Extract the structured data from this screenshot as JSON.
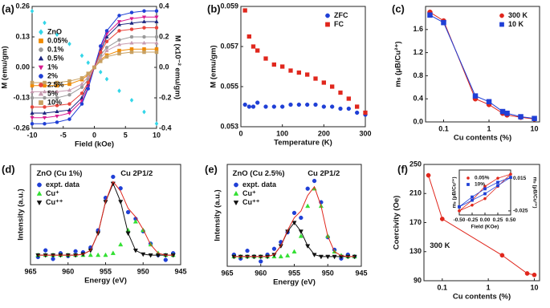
{
  "chart_data": [
    {
      "type": "line",
      "label": "(a)",
      "xlabel": "Field (kOe)",
      "ylabel": "M (emu/gm)",
      "y2label": "M (x10⁻² emu/gm)",
      "xlim": [
        -10,
        10
      ],
      "xticks": [
        -10,
        -5,
        0,
        5,
        10
      ],
      "ylim": [
        -0.26,
        0.26
      ],
      "yticks": [
        0.26,
        0.13,
        {
          "value": 0,
          "label": "0.00"
        },
        -0.13,
        -0.26
      ],
      "y2lim": [
        -0.4,
        0.4
      ],
      "y2ticks": [
        0.4,
        0.2,
        {
          "value": 0,
          "label": "0.0"
        },
        -0.2,
        -0.4
      ],
      "legend": "center left",
      "x": [
        -10,
        -8,
        -6,
        -4,
        -2,
        -1,
        0,
        1,
        2,
        4,
        6,
        8,
        10
      ],
      "series": [
        {
          "name": "ZnO",
          "color": "#33d6e8",
          "marker": "diamond",
          "line": false,
          "values": [
            0.24,
            0.19,
            0.14,
            0.1,
            0.05,
            0.02,
            0,
            -0.02,
            -0.05,
            -0.1,
            -0.14,
            -0.19,
            -0.24
          ]
        },
        {
          "name": "0.05%",
          "color": "#f08a00",
          "marker": "square",
          "line": true,
          "axis": "y2",
          "values": [
            -0.12,
            -0.12,
            -0.12,
            -0.11,
            -0.08,
            -0.05,
            0,
            0.05,
            0.08,
            0.11,
            0.12,
            0.12,
            0.12
          ]
        },
        {
          "name": "0.1%",
          "color": "#9a9a9a",
          "marker": "circle",
          "line": true,
          "axis": "y2",
          "values": [
            -0.2,
            -0.2,
            -0.2,
            -0.18,
            -0.13,
            -0.08,
            0,
            0.08,
            0.13,
            0.18,
            0.2,
            0.2,
            0.2
          ]
        },
        {
          "name": "0.5%",
          "color": "#1a237e",
          "marker": "triangle",
          "line": true,
          "axis": "y2",
          "values": [
            -0.3,
            -0.3,
            -0.29,
            -0.28,
            -0.2,
            -0.11,
            0,
            0.11,
            0.2,
            0.28,
            0.29,
            0.3,
            0.3
          ]
        },
        {
          "name": "1%",
          "color": "#d81b8f",
          "marker": "triangle-down",
          "line": true,
          "axis": "y2",
          "values": [
            -0.33,
            -0.33,
            -0.32,
            -0.3,
            -0.22,
            -0.13,
            0,
            0.13,
            0.22,
            0.3,
            0.32,
            0.33,
            0.33
          ]
        },
        {
          "name": "2%",
          "color": "#1f3fd6",
          "marker": "circle",
          "line": true,
          "axis": "y2",
          "values": [
            -0.37,
            -0.37,
            -0.36,
            -0.34,
            -0.24,
            -0.14,
            0,
            0.14,
            0.24,
            0.34,
            0.36,
            0.37,
            0.37
          ]
        },
        {
          "name": "2.5%",
          "color": "#e8453c",
          "marker": "circle",
          "line": true,
          "axis": "y2",
          "values": [
            -0.26,
            -0.26,
            -0.25,
            -0.24,
            -0.17,
            -0.1,
            0,
            0.1,
            0.17,
            0.24,
            0.25,
            0.26,
            0.26
          ]
        },
        {
          "name": "5%",
          "color": "#c79bb0",
          "marker": "triangle",
          "line": true,
          "axis": "y2",
          "values": [
            -0.16,
            -0.16,
            -0.16,
            -0.15,
            -0.11,
            -0.06,
            0,
            0.06,
            0.11,
            0.15,
            0.16,
            0.16,
            0.16
          ]
        },
        {
          "name": "10%",
          "color": "#c8a060",
          "marker": "square",
          "line": true,
          "axis": "y2",
          "values": [
            -0.1,
            -0.1,
            -0.1,
            -0.09,
            -0.07,
            -0.04,
            0,
            0.04,
            0.07,
            0.09,
            0.1,
            0.1,
            0.1
          ]
        }
      ]
    },
    {
      "type": "scatter",
      "label": "(b)",
      "xlabel": "Temperature (K)",
      "ylabel": "M (emu/gm)",
      "xlim": [
        0,
        300
      ],
      "xticks": [
        0,
        100,
        200,
        300
      ],
      "ylim": [
        0.053,
        0.059
      ],
      "yticks": [
        0.053,
        0.055,
        0.057,
        0.059
      ],
      "legend": "upper right",
      "x": [
        10,
        20,
        30,
        40,
        60,
        80,
        100,
        120,
        140,
        160,
        180,
        200,
        220,
        240,
        260,
        280,
        300
      ],
      "series": [
        {
          "name": "ZFC",
          "color": "#1f3fd6",
          "marker": "circle",
          "line": false,
          "values": [
            0.0541,
            0.054,
            0.054,
            0.0542,
            0.054,
            0.054,
            0.054,
            0.0541,
            0.0541,
            0.0541,
            0.0541,
            0.054,
            0.054,
            0.0539,
            0.0539,
            0.0537,
            0.0536
          ]
        },
        {
          "name": "FC",
          "color": "#e0261c",
          "marker": "square",
          "line": false,
          "values": [
            0.0588,
            0.0575,
            0.057,
            0.0568,
            0.0564,
            0.0561,
            0.056,
            0.0558,
            0.0557,
            0.0556,
            0.0554,
            0.0552,
            0.055,
            0.0547,
            0.0544,
            0.054,
            0.0537
          ]
        }
      ]
    },
    {
      "type": "line",
      "label": "(c)",
      "xlabel": "Cu contents (%)",
      "ylabel": "mₛ (μB/Cu²⁺)",
      "xscale": "log",
      "xlim": [
        0.04,
        13
      ],
      "xticks": [
        0.1,
        1,
        10
      ],
      "ylim": [
        0,
        2
      ],
      "yticks": [
        {
          "value": 0,
          "label": "0.0"
        },
        0.4,
        0.8,
        1.2,
        1.6
      ],
      "legend": "upper right",
      "x": [
        0.05,
        0.1,
        0.5,
        1,
        2,
        2.5,
        5,
        10
      ],
      "series": [
        {
          "name": "300 K",
          "color": "#e0261c",
          "marker": "circle",
          "line": true,
          "values": [
            1.9,
            1.75,
            0.4,
            0.3,
            0.15,
            0.12,
            0.08,
            0.05
          ]
        },
        {
          "name": "10 K",
          "color": "#1f3fd6",
          "marker": "square",
          "line": true,
          "values": [
            1.85,
            1.72,
            0.45,
            0.35,
            0.18,
            0.15,
            0.09,
            0.06
          ]
        }
      ]
    },
    {
      "type": "line",
      "label": "(d)",
      "xlabel": "Energy (eV)",
      "ylabel": "Intensity (a.u.)",
      "annotations": [
        "ZnO (Cu 1%)",
        "Cu 2P1/2"
      ],
      "xlim": [
        965,
        945
      ],
      "xticks": [
        965,
        960,
        955,
        950,
        945
      ],
      "ylim": [
        0,
        1.05
      ],
      "legend": "upper left",
      "x": [
        964,
        963,
        962,
        961,
        960,
        959,
        958,
        957,
        956,
        955,
        954,
        953,
        952,
        951,
        950,
        949,
        948,
        947,
        946
      ],
      "series": [
        {
          "name": "expt. data",
          "color": "#1f3fd6",
          "marker": "circle",
          "line": false,
          "values": [
            0.08,
            0.15,
            0.06,
            0.12,
            0.09,
            0.14,
            0.13,
            0.18,
            0.36,
            0.7,
            0.92,
            0.8,
            0.55,
            0.48,
            0.35,
            0.22,
            0.1,
            0.05,
            0.12
          ]
        },
        {
          "name": "Cu⁺",
          "color": "#33e033",
          "marker": "triangle",
          "line": false,
          "values": [
            0.1,
            0.1,
            0.1,
            0.1,
            0.1,
            0.1,
            0.1,
            0.1,
            0.1,
            0.1,
            0.12,
            0.21,
            0.36,
            0.45,
            0.36,
            0.21,
            0.12,
            0.1,
            0.1
          ]
        },
        {
          "name": "Cu⁺⁺",
          "color": "#111111",
          "marker": "triangle-down",
          "line": true,
          "values": [
            0.1,
            0.1,
            0.1,
            0.1,
            0.1,
            0.1,
            0.11,
            0.15,
            0.33,
            0.66,
            0.85,
            0.66,
            0.33,
            0.15,
            0.11,
            0.1,
            0.1,
            0.1,
            0.1
          ]
        },
        {
          "color": "#e0261c",
          "marker": "none",
          "line": true,
          "values": [
            0.1,
            0.1,
            0.1,
            0.1,
            0.1,
            0.1,
            0.11,
            0.15,
            0.33,
            0.66,
            0.87,
            0.77,
            0.59,
            0.5,
            0.37,
            0.21,
            0.12,
            0.1,
            0.1
          ]
        }
      ]
    },
    {
      "type": "line",
      "label": "(e)",
      "xlabel": "Energy (eV)",
      "ylabel": "Intensity (a.u.)",
      "annotations": [
        "ZnO (Cu 2.5%)",
        "Cu 2P1/2"
      ],
      "xlim": [
        965,
        945
      ],
      "xticks": [
        965,
        960,
        955,
        950,
        945
      ],
      "ylim": [
        0,
        1.05
      ],
      "legend": "upper left",
      "x": [
        964,
        963,
        962,
        961,
        960,
        959,
        958,
        957,
        956,
        955,
        954,
        953,
        952,
        951,
        950,
        949,
        948,
        947,
        946
      ],
      "series": [
        {
          "name": "expt. data",
          "color": "#1f3fd6",
          "marker": "circle",
          "line": false,
          "values": [
            0.12,
            0.08,
            0.16,
            0.1,
            0.05,
            0.12,
            0.18,
            0.25,
            0.35,
            0.55,
            0.5,
            0.8,
            0.88,
            0.66,
            0.3,
            0.17,
            0.08,
            0.12,
            0.1
          ]
        },
        {
          "name": "Cu⁺",
          "color": "#33e033",
          "marker": "triangle",
          "line": false,
          "values": [
            0.1,
            0.1,
            0.1,
            0.1,
            0.1,
            0.1,
            0.1,
            0.1,
            0.11,
            0.15,
            0.31,
            0.62,
            0.8,
            0.62,
            0.31,
            0.15,
            0.11,
            0.1,
            0.1
          ]
        },
        {
          "name": "Cu⁺⁺",
          "color": "#111111",
          "marker": "triangle-down",
          "line": true,
          "values": [
            0.1,
            0.1,
            0.1,
            0.1,
            0.1,
            0.1,
            0.12,
            0.21,
            0.36,
            0.45,
            0.36,
            0.21,
            0.12,
            0.1,
            0.1,
            0.1,
            0.1,
            0.1,
            0.1
          ]
        },
        {
          "color": "#e0261c",
          "marker": "none",
          "line": true,
          "values": [
            0.1,
            0.1,
            0.1,
            0.1,
            0.1,
            0.1,
            0.12,
            0.21,
            0.37,
            0.5,
            0.57,
            0.73,
            0.82,
            0.62,
            0.31,
            0.15,
            0.11,
            0.1,
            0.1
          ]
        }
      ]
    },
    {
      "type": "line",
      "label": "(f)",
      "xlabel": "Cu contents (%)",
      "ylabel": "Coercivity (Oe)",
      "annotations": [
        "300 K"
      ],
      "xscale": "log",
      "xlim": [
        0.04,
        13
      ],
      "xticks": [
        0.1,
        1,
        10
      ],
      "ylim": [
        90,
        250
      ],
      "yticks": [
        90,
        130,
        170,
        210,
        250
      ],
      "x": [
        0.05,
        0.1,
        2,
        7,
        10
      ],
      "series": [
        {
          "color": "#e0261c",
          "marker": "circle",
          "line": true,
          "values": [
            235,
            175,
            125,
            100,
            98
          ]
        }
      ]
    },
    {
      "type": "line",
      "xlabel": "Field (KOe)",
      "ylabel": "mₛ (μB/Cu²⁺)",
      "y2label": "mₛ (μB/Cu²⁺)",
      "xlim": [
        -0.5,
        0.5
      ],
      "xticks": [
        {
          "value": -0.5,
          "label": "-0.50"
        },
        -0.25,
        {
          "value": 0,
          "label": "0.00"
        },
        0.25,
        {
          "value": 0.5,
          "label": "0.50"
        }
      ],
      "ylim": [
        -0.03,
        0.025
      ],
      "y2lim": [
        -0.03,
        0.025
      ],
      "y2ticks": [
        0.015,
        -0.025
      ],
      "legend": "upper left",
      "x": [
        -0.5,
        -0.25,
        0,
        0.25,
        0.5,
        0.25,
        0,
        -0.25,
        -0.5
      ],
      "series": [
        {
          "name": "0.05%",
          "color": "#e0261c",
          "marker": "circle",
          "line": true,
          "axis": "y2",
          "values": [
            -0.025,
            -0.018,
            -0.01,
            0.005,
            0.02,
            0.015,
            0.005,
            -0.012,
            -0.025
          ]
        },
        {
          "name": "10%",
          "color": "#1f3fd6",
          "marker": "square",
          "line": true,
          "axis": "y2",
          "values": [
            -0.02,
            -0.012,
            -0.004,
            0.006,
            0.016,
            0.01,
            0.002,
            -0.008,
            -0.02
          ]
        }
      ]
    }
  ]
}
